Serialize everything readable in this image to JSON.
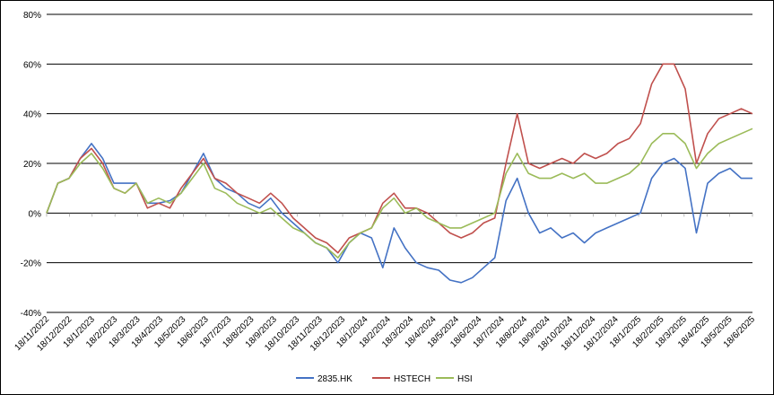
{
  "chart_data": {
    "type": "line",
    "title": "",
    "xlabel": "",
    "ylabel": "",
    "ylim": [
      -40,
      80
    ],
    "y_ticks": [
      "-40%",
      "-20%",
      "0%",
      "20%",
      "40%",
      "60%",
      "80%"
    ],
    "x_tick_labels": [
      "18/11/2022",
      "18/12/2022",
      "18/1/2023",
      "18/2/2023",
      "18/3/2023",
      "18/4/2023",
      "18/5/2023",
      "18/6/2023",
      "18/7/2023",
      "18/8/2023",
      "18/9/2023",
      "18/10/2023",
      "18/11/2023",
      "18/12/2023",
      "18/1/2024",
      "18/2/2024",
      "18/3/2024",
      "18/4/2024",
      "18/5/2024",
      "18/6/2024",
      "18/7/2024",
      "18/8/2024",
      "18/9/2024",
      "18/10/2024",
      "18/11/2024",
      "18/12/2024",
      "18/1/2025",
      "18/2/2025",
      "18/3/2025",
      "18/4/2025",
      "18/5/2025",
      "18/6/2025"
    ],
    "grid": "horizontal",
    "legend_position": "bottom",
    "x": [
      "18/11/2022",
      "3/12/2022",
      "18/12/2022",
      "2/1/2023",
      "18/1/2023",
      "2/2/2023",
      "18/2/2023",
      "3/3/2023",
      "18/3/2023",
      "2/4/2023",
      "18/4/2023",
      "3/5/2023",
      "18/5/2023",
      "2/6/2023",
      "18/6/2023",
      "3/7/2023",
      "18/7/2023",
      "2/8/2023",
      "18/8/2023",
      "2/9/2023",
      "18/9/2023",
      "3/10/2023",
      "18/10/2023",
      "2/11/2023",
      "18/11/2023",
      "3/12/2023",
      "18/12/2023",
      "2/1/2024",
      "18/1/2024",
      "2/2/2024",
      "18/2/2024",
      "3/3/2024",
      "18/3/2024",
      "2/4/2024",
      "18/4/2024",
      "3/5/2024",
      "18/5/2024",
      "2/6/2024",
      "18/6/2024",
      "3/7/2024",
      "18/7/2024",
      "2/8/2024",
      "18/8/2024",
      "2/9/2024",
      "18/9/2024",
      "3/10/2024",
      "18/10/2024",
      "2/11/2024",
      "18/11/2024",
      "3/12/2024",
      "18/12/2024",
      "2/1/2025",
      "18/1/2025",
      "2/2/2025",
      "18/2/2025",
      "3/3/2025",
      "18/3/2025",
      "2/4/2025",
      "18/4/2025",
      "3/5/2025",
      "18/5/2025",
      "2/6/2025",
      "18/6/2025",
      "30/6/2025"
    ],
    "series": [
      {
        "name": "2835.HK",
        "color": "#4472C4",
        "values": [
          0,
          12,
          14,
          22,
          28,
          22,
          12,
          12,
          12,
          4,
          4,
          5,
          8,
          16,
          24,
          14,
          10,
          8,
          4,
          2,
          6,
          0,
          -4,
          -8,
          -12,
          -14,
          -20,
          -12,
          -8,
          -10,
          -22,
          -6,
          -14,
          -20,
          -22,
          -23,
          -27,
          -28,
          -26,
          -22,
          -18,
          5,
          14,
          0,
          -8,
          -6,
          -10,
          -8,
          -12,
          -8,
          -6,
          -4,
          -2,
          0,
          14,
          20,
          22,
          18,
          -8,
          12,
          16,
          18,
          14,
          14
        ]
      },
      {
        "name": "HSTECH",
        "color": "#C0504D",
        "values": [
          0,
          12,
          14,
          22,
          26,
          20,
          10,
          8,
          12,
          2,
          4,
          2,
          10,
          16,
          22,
          14,
          12,
          8,
          6,
          4,
          8,
          4,
          -2,
          -6,
          -10,
          -12,
          -16,
          -10,
          -8,
          -6,
          4,
          8,
          2,
          2,
          0,
          -4,
          -8,
          -10,
          -8,
          -4,
          -2,
          20,
          40,
          20,
          18,
          20,
          22,
          20,
          24,
          22,
          24,
          28,
          30,
          36,
          52,
          60,
          60,
          50,
          20,
          32,
          38,
          40,
          42,
          40
        ]
      },
      {
        "name": "HSI",
        "color": "#9BBB59",
        "values": [
          0,
          12,
          14,
          20,
          24,
          18,
          10,
          8,
          12,
          4,
          6,
          4,
          8,
          14,
          20,
          10,
          8,
          4,
          2,
          0,
          2,
          -2,
          -6,
          -8,
          -12,
          -14,
          -18,
          -12,
          -8,
          -6,
          2,
          6,
          0,
          2,
          -2,
          -4,
          -6,
          -6,
          -4,
          -2,
          0,
          16,
          24,
          16,
          14,
          14,
          16,
          14,
          16,
          12,
          12,
          14,
          16,
          20,
          28,
          32,
          32,
          28,
          18,
          24,
          28,
          30,
          32,
          34
        ]
      }
    ]
  }
}
